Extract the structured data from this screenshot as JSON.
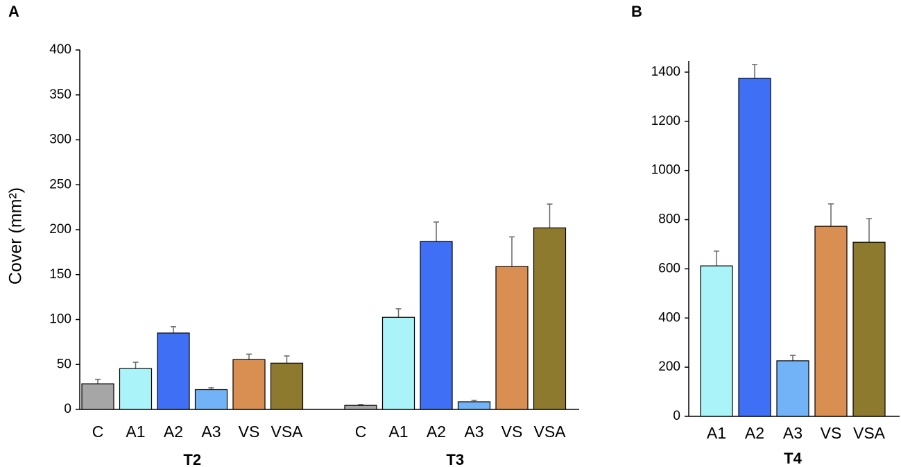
{
  "chart_data": [
    {
      "type": "bar",
      "panel": "A",
      "ylabel": "Cover (mm²)",
      "colors": [
        "#a6a6a6",
        "#aaf3f8",
        "#3f6ff5",
        "#72b2f7",
        "#d98e52",
        "#8e7a2e"
      ],
      "groups": [
        {
          "name": "T2",
          "categories": [
            "C",
            "A1",
            "A2",
            "A3",
            "VS",
            "VSA"
          ],
          "values": [
            28.5,
            45.5,
            85,
            22,
            55.5,
            51.5
          ],
          "errors": [
            5,
            7,
            7,
            2,
            6,
            8
          ]
        },
        {
          "name": "T3",
          "categories": [
            "C",
            "A1",
            "A2",
            "A3",
            "VS",
            "VSA"
          ],
          "values": [
            4.5,
            102.5,
            187,
            8.5,
            159,
            202
          ],
          "errors": [
            1,
            9.5,
            21.5,
            1.5,
            33,
            26.5
          ]
        }
      ],
      "ylim": [
        0,
        400
      ],
      "yticks": [
        0,
        50,
        100,
        150,
        200,
        250,
        300,
        350,
        400
      ]
    },
    {
      "type": "bar",
      "panel": "B",
      "colors": [
        "#aaf3f8",
        "#3f6ff5",
        "#72b2f7",
        "#d98e52",
        "#8e7a2e"
      ],
      "groups": [
        {
          "name": "T4",
          "categories": [
            "A1",
            "A2",
            "A3",
            "VS",
            "VSA"
          ],
          "values": [
            612,
            1375,
            226,
            773,
            708
          ],
          "errors": [
            60,
            56,
            22,
            91,
            96
          ]
        }
      ],
      "ylim": [
        0,
        1445
      ],
      "yticks": [
        0,
        200,
        400,
        600,
        800,
        1000,
        1200,
        1400
      ]
    }
  ]
}
